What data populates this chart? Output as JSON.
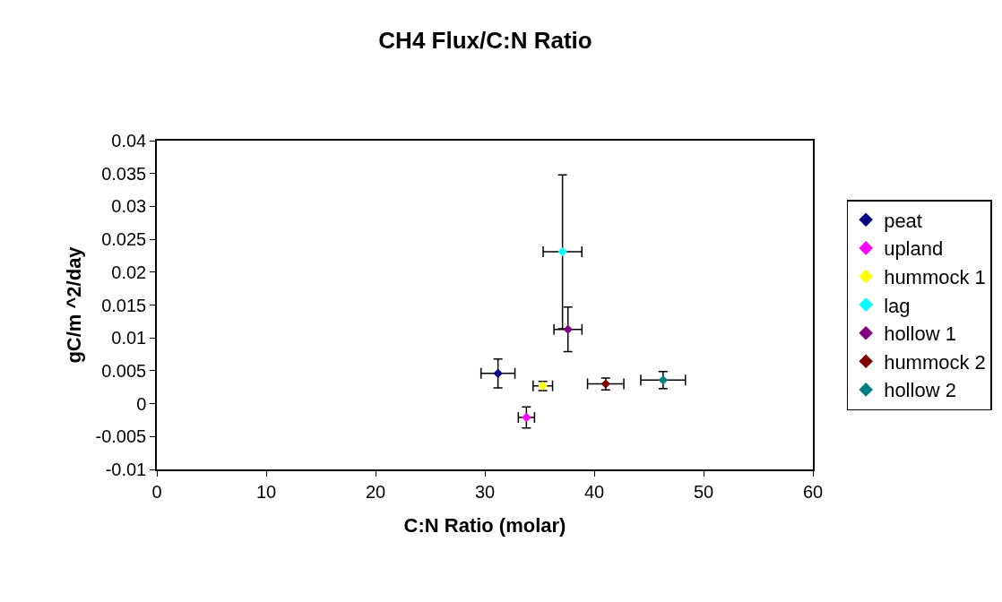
{
  "chart_data": {
    "type": "scatter",
    "title": "CH4 Flux/C:N Ratio",
    "xlabel": "C:N Ratio (molar)",
    "ylabel": "gC/m ^2/day",
    "xlim": [
      0,
      60
    ],
    "xticks": [
      0,
      10,
      20,
      30,
      40,
      50,
      60
    ],
    "ylim": [
      -0.01,
      0.04
    ],
    "yticks": [
      -0.01,
      -0.005,
      0,
      0.005,
      0.01,
      0.015,
      0.02,
      0.025,
      0.03,
      0.035,
      0.04
    ],
    "marker": "diamond",
    "grid": false,
    "legend": "right",
    "series": [
      {
        "name": "peat",
        "color": "#000080",
        "x": [
          31.2
        ],
        "values": [
          0.0046
        ],
        "errors": [
          0.0022
        ],
        "xerrors": [
          1.55
        ]
      },
      {
        "name": "upland",
        "color": "#ff00ff",
        "x": [
          33.8
        ],
        "values": [
          -0.0021
        ],
        "errors": [
          0.0016
        ],
        "xerrors": [
          0.74
        ]
      },
      {
        "name": "hummock 1",
        "color": "#ffff00",
        "x": [
          35.3
        ],
        "values": [
          0.0027
        ],
        "errors": [
          0.0007
        ],
        "xerrors": [
          0.89
        ]
      },
      {
        "name": "lag",
        "color": "#00ffff",
        "x": [
          37.1
        ],
        "values": [
          0.0231
        ],
        "errors": [
          0.0117
        ],
        "xerrors": [
          1.77
        ]
      },
      {
        "name": "hollow 1",
        "color": "#800080",
        "x": [
          37.6
        ],
        "values": [
          0.0113
        ],
        "errors": [
          0.0034
        ],
        "xerrors": [
          1.28
        ]
      },
      {
        "name": "hummock 2",
        "color": "#800000",
        "x": [
          41.05
        ],
        "values": [
          0.003
        ],
        "errors": [
          0.0009
        ],
        "xerrors": [
          1.66
        ]
      },
      {
        "name": "hollow 2",
        "color": "#008080",
        "x": [
          46.3
        ],
        "values": [
          0.0036
        ],
        "errors": [
          0.0013
        ],
        "xerrors": [
          2.04
        ]
      }
    ]
  }
}
